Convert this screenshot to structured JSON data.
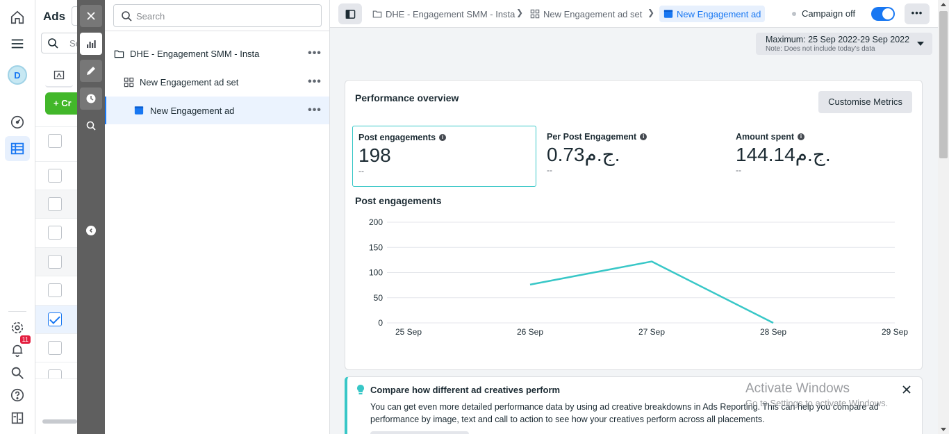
{
  "rail": {
    "avatar_letter": "D",
    "notification_count": "11",
    "icons": [
      "home-icon",
      "menu-icon",
      "avatar",
      "dashboard-icon",
      "table-icon",
      "settings-icon",
      "bell-icon",
      "search-icon",
      "help-icon",
      "panel-icon"
    ]
  },
  "ads_column": {
    "title": "Ads",
    "search_placeholder": "Se",
    "create_label": "+ Cr",
    "rows_checked": [
      false,
      false,
      false,
      false,
      false,
      false,
      true,
      false
    ]
  },
  "tools": {
    "icons": [
      "close-icon",
      "chart-icon",
      "edit-icon",
      "history-icon",
      "inspect-icon"
    ],
    "active": "chart-icon"
  },
  "tree": {
    "search_placeholder": "Search",
    "items": [
      {
        "label": "DHE - Engagement SMM - Insta",
        "type": "campaign",
        "more": "•••"
      },
      {
        "label": "New Engagement ad set",
        "type": "adset",
        "more": "•••"
      },
      {
        "label": "New Engagement ad",
        "type": "ad",
        "more": "•••",
        "selected": true
      }
    ]
  },
  "topbar": {
    "breadcrumbs": [
      {
        "label": "DHE - Engagement SMM - Insta",
        "icon": "folder-icon"
      },
      {
        "label": "New Engagement ad set",
        "icon": "grid-icon"
      },
      {
        "label": "New Engagement ad",
        "icon": "ad-icon",
        "current": true
      }
    ],
    "campaign_status": "Campaign off",
    "toggle_on": true,
    "more": "•••"
  },
  "date_range": {
    "label": "Maximum: 25 Sep 2022-29 Sep 2022",
    "note": "Note: Does not include today's data"
  },
  "performance": {
    "title": "Performance overview",
    "customise_label": "Customise Metrics",
    "metrics": [
      {
        "label": "Post engagements",
        "value": "198",
        "delta": "--",
        "selected": true
      },
      {
        "label": "Per Post Engagement",
        "value": "0.73ج.م.",
        "delta": "--"
      },
      {
        "label": "Amount spent",
        "value": "144.14ج.م.",
        "delta": "--"
      }
    ],
    "chart_title": "Post engagements"
  },
  "chart_data": {
    "type": "line",
    "title": "Post engagements",
    "categories": [
      "25 Sep",
      "26 Sep",
      "27 Sep",
      "28 Sep",
      "29 Sep"
    ],
    "series": [
      {
        "values": [
          null,
          76,
          122,
          0,
          null
        ],
        "color": "#38c7c7"
      }
    ],
    "yticks": [
      0,
      50,
      100,
      150,
      200
    ],
    "ylim": [
      0,
      200
    ],
    "grid": true
  },
  "tip": {
    "title": "Compare how different ad creatives perform",
    "body": "You can get even more detailed performance data by using ad creative breakdowns in Ads Reporting. This can help you compare ad performance by image, text and call to action to see how your creatives perform across all placements."
  },
  "watermark": {
    "line1": "Activate Windows",
    "line2": "Go to Settings to activate Windows."
  },
  "colors": {
    "accent": "#1877f2",
    "teal": "#38c7c7",
    "green": "#42b72a"
  }
}
